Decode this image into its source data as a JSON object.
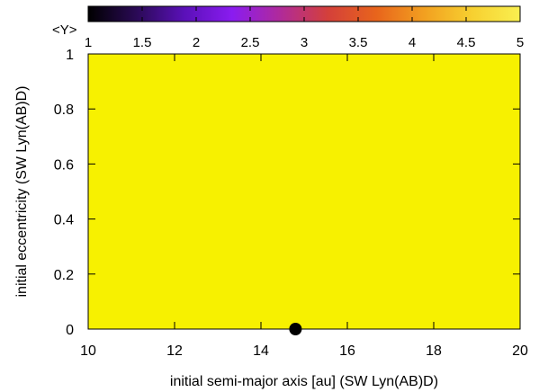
{
  "chart_data": {
    "type": "heatmap",
    "xlabel": "initial semi-major axis [au] (SW Lyn(AB)D)",
    "ylabel": "initial eccentricity (SW Lyn(AB)D)",
    "xlim": [
      10,
      20
    ],
    "ylim": [
      0,
      1
    ],
    "x_ticks": [
      "10",
      "12",
      "14",
      "16",
      "18",
      "20"
    ],
    "y_ticks": [
      "0",
      "0.2",
      "0.4",
      "0.6",
      "0.8",
      "1"
    ],
    "grid": false,
    "colorbar": {
      "label": "<Y>",
      "range": [
        1,
        5
      ],
      "ticks": [
        "1",
        "1.5",
        "2",
        "2.5",
        "3",
        "3.5",
        "4",
        "4.5",
        "5"
      ],
      "colormap": [
        "#000000",
        "#2a0a55",
        "#5a10b8",
        "#8a1cf0",
        "#b02a9a",
        "#d4403a",
        "#e8641c",
        "#f2a020",
        "#f7d030",
        "#f9f050"
      ]
    },
    "field_value": 5,
    "field_color": "#f7f100",
    "marker": {
      "x": 14.8,
      "y": 0,
      "color": "#000000"
    }
  }
}
